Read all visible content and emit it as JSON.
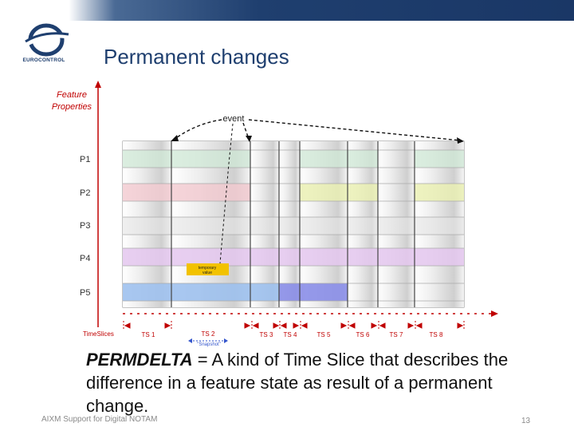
{
  "header": {
    "title": "Permanent changes",
    "logo_text": "EUROCONTROL"
  },
  "diagram": {
    "y_axis_label_line1": "Feature",
    "y_axis_label_line2": "Properties",
    "event_label": "event",
    "properties": [
      "P1",
      "P2",
      "P3",
      "P4",
      "P5"
    ],
    "timeslices_label": "TimeSlices",
    "timeslices": [
      "TS 1",
      "TS 2",
      "TS 3",
      "TS 4",
      "TS 5",
      "TS 6",
      "TS 7",
      "TS 8"
    ],
    "temporary_label_line1": "temporary",
    "temporary_label_line2": "value",
    "snapshot_label": "\"Snapshot\"",
    "colors": {
      "p1_band": "#cfe8d6",
      "p2_band": "#f2c9cf",
      "p2_band_alt": "#eaf0b0",
      "p4_band": "#e4c7ee",
      "p5_band": "#9ec1ee",
      "p5_band_alt": "#8a8ee8",
      "temporary_box": "#f2c200",
      "arrow": "#c00000"
    }
  },
  "body": {
    "term": "PERMDELTA",
    "description": " = A kind of Time Slice that describes the difference in a feature state as result of a permanent change."
  },
  "footer": {
    "text": "AIXM Support for Digital NOTAM",
    "page_number": "13"
  }
}
